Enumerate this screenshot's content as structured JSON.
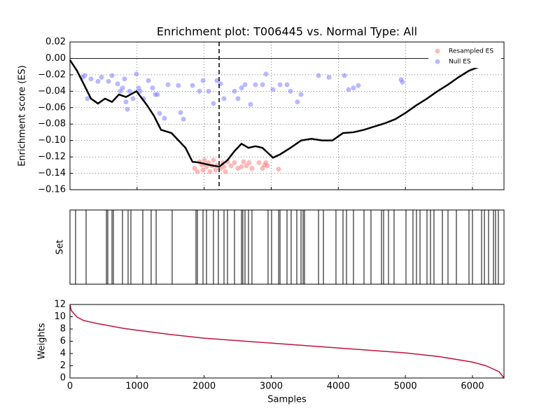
{
  "chart_data": [
    {
      "type": "line",
      "title": "Enrichment plot: T006445 vs. Normal Type: All",
      "ylabel": "Enrichment score (ES)",
      "x": [
        0,
        104,
        209,
        313,
        417,
        522,
        626,
        730,
        835,
        991,
        1148,
        1252,
        1357,
        1513,
        1618,
        1722,
        1826,
        1930,
        2087,
        2223,
        2348,
        2452,
        2556,
        2661,
        2765,
        2870,
        3026,
        3131,
        3287,
        3444,
        3600,
        3757,
        3913,
        4070,
        4226,
        4383,
        4539,
        4696,
        4852,
        5009,
        5165,
        5322,
        5478,
        5635,
        5791,
        5948,
        6104
      ],
      "values": [
        -0.002,
        -0.015,
        -0.032,
        -0.049,
        -0.055,
        -0.049,
        -0.053,
        -0.044,
        -0.047,
        -0.04,
        -0.057,
        -0.07,
        -0.087,
        -0.091,
        -0.1,
        -0.109,
        -0.126,
        -0.127,
        -0.13,
        -0.132,
        -0.124,
        -0.113,
        -0.104,
        -0.109,
        -0.107,
        -0.109,
        -0.121,
        -0.117,
        -0.109,
        -0.1,
        -0.098,
        -0.1,
        -0.1,
        -0.091,
        -0.09,
        -0.087,
        -0.083,
        -0.079,
        -0.074,
        -0.066,
        -0.057,
        -0.049,
        -0.04,
        -0.032,
        -0.023,
        -0.015,
        -0.01
      ],
      "color": "#000000",
      "scatter": [
        {
          "name": "Resampled ES",
          "color": "#ff8080",
          "x": [
            1857,
            1899,
            1930,
            1962,
            1983,
            2004,
            2035,
            2066,
            2087,
            2118,
            2139,
            2170,
            2191,
            2244,
            2275,
            2296,
            2317,
            2348,
            2400,
            2452,
            2504,
            2557,
            2588,
            2630,
            2671,
            2713,
            2817,
            2870,
            2901,
            2943,
            3110,
            2922
          ],
          "y": [
            -0.134,
            -0.138,
            -0.126,
            -0.13,
            -0.136,
            -0.124,
            -0.132,
            -0.127,
            -0.138,
            -0.131,
            -0.124,
            -0.136,
            -0.13,
            -0.134,
            -0.127,
            -0.132,
            -0.138,
            -0.126,
            -0.131,
            -0.127,
            -0.134,
            -0.132,
            -0.126,
            -0.131,
            -0.127,
            -0.134,
            -0.127,
            -0.134,
            -0.13,
            -0.131,
            -0.135,
            -0.127
          ]
        },
        {
          "name": "Null ES",
          "color": "#8080ff",
          "x": [
            188,
            219,
            261,
            313,
            417,
            470,
            574,
            626,
            710,
            751,
            783,
            814,
            835,
            856,
            887,
            939,
            991,
            1023,
            1044,
            1096,
            1169,
            1231,
            1273,
            1304,
            1336,
            1409,
            1461,
            1617,
            1649,
            1691,
            1826,
            1930,
            1983,
            2066,
            2139,
            2191,
            2244,
            2296,
            2452,
            2504,
            2557,
            2609,
            2692,
            2765,
            2870,
            2922,
            3026,
            3131,
            3235,
            3287,
            3391,
            3444,
            3705,
            3861,
            4091,
            4153,
            4226,
            4299,
            4936,
            4957
          ],
          "y": [
            -0.023,
            -0.021,
            -0.049,
            -0.025,
            -0.028,
            -0.023,
            -0.028,
            -0.021,
            -0.031,
            -0.04,
            -0.036,
            -0.025,
            -0.053,
            -0.062,
            -0.04,
            -0.049,
            -0.019,
            -0.036,
            -0.04,
            -0.049,
            -0.027,
            -0.036,
            -0.044,
            -0.044,
            -0.067,
            -0.073,
            -0.032,
            -0.033,
            -0.066,
            -0.074,
            -0.033,
            -0.04,
            -0.027,
            -0.04,
            -0.055,
            -0.027,
            -0.031,
            -0.049,
            -0.04,
            -0.049,
            -0.036,
            -0.032,
            -0.056,
            -0.032,
            -0.032,
            -0.019,
            -0.038,
            -0.032,
            -0.032,
            -0.04,
            -0.053,
            -0.044,
            -0.021,
            -0.023,
            -0.021,
            -0.038,
            -0.036,
            -0.033,
            -0.026,
            -0.029
          ]
        }
      ],
      "vline": 2223,
      "legend": "upper right",
      "grid": true,
      "xlim": [
        0,
        6470
      ],
      "ylim": [
        -0.16,
        0.02
      ],
      "xticks": [
        0,
        1000,
        2000,
        3000,
        4000,
        5000,
        6000
      ],
      "yticks": [
        0.02,
        {
          "value": 0,
          "label": "0.00"
        },
        {
          "value": -0.02,
          "label": "−0.02"
        },
        {
          "value": -0.04,
          "label": "−0.04"
        },
        {
          "value": -0.06,
          "label": "−0.06"
        },
        {
          "value": -0.08,
          "label": "−0.08"
        },
        {
          "value": -0.1,
          "label": "−0.10"
        },
        {
          "value": -0.12,
          "label": "−0.12"
        },
        {
          "value": -0.14,
          "label": "−0.14"
        },
        {
          "value": -0.16,
          "label": "−0.16"
        }
      ]
    },
    {
      "type": "rug",
      "ylabel": "Set",
      "color": "#000000",
      "xlim": [
        0,
        6470
      ],
      "x": [
        83,
        240,
        543,
        563,
        626,
        647,
        783,
        866,
        908,
        1085,
        1210,
        1284,
        1523,
        1878,
        1899,
        1983,
        2035,
        2139,
        2212,
        2296,
        2348,
        2452,
        2557,
        2577,
        2609,
        2661,
        2713,
        2953,
        3005,
        3110,
        3131,
        3235,
        3297,
        3381,
        3444,
        3475,
        3496,
        3705,
        3778,
        3965,
        4070,
        4122,
        4226,
        4383,
        4487,
        4644,
        4675,
        4748,
        4831,
        5009,
        5113,
        5165,
        5218,
        5322,
        5374,
        5426,
        5552,
        5635,
        5760,
        5948,
        6000,
        6136,
        6178,
        6240,
        6313,
        6344,
        6386
      ]
    },
    {
      "type": "line",
      "ylabel": "Weights",
      "xlabel": "Samples",
      "color": "#c0143c",
      "x": [
        0,
        20,
        100,
        200,
        400,
        800,
        1000,
        1500,
        2000,
        2500,
        3000,
        3500,
        4000,
        4500,
        5000,
        5500,
        6000,
        6200,
        6400,
        6470
      ],
      "values": [
        12,
        11,
        10,
        9.4,
        8.9,
        8.1,
        7.8,
        7.1,
        6.5,
        6.1,
        5.7,
        5.3,
        4.9,
        4.5,
        4.1,
        3.5,
        2.6,
        2,
        1,
        0
      ],
      "xlim": [
        0,
        6470
      ],
      "ylim": [
        0,
        12
      ],
      "xticks": [
        0,
        1000,
        2000,
        3000,
        4000,
        5000,
        6000
      ],
      "yticks": [
        0,
        2,
        4,
        6,
        8,
        10,
        12
      ]
    }
  ]
}
